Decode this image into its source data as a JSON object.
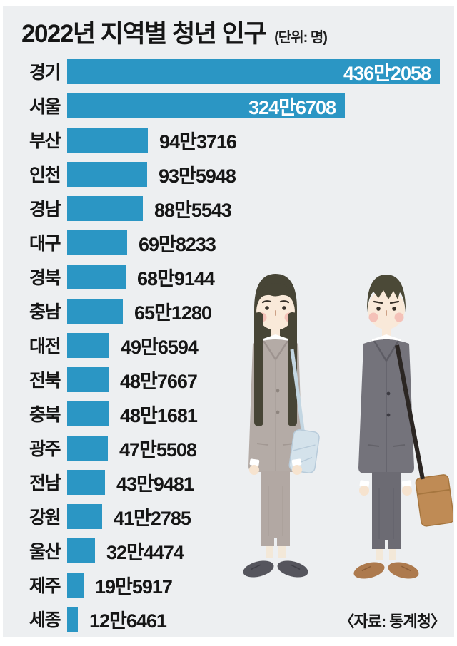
{
  "title": "2022년 지역별 청년 인구",
  "unit_note": "(단위: 명)",
  "source": "〈자료: 통계청〉",
  "colors": {
    "panel_bg": "#edeff1",
    "bar": "#2b96c4",
    "text": "#161616",
    "value_inside_text": "#ffffff"
  },
  "chart_data": {
    "type": "bar",
    "orientation": "horizontal",
    "title": "2022년 지역별 청년 인구",
    "unit": "명",
    "xlim": [
      0,
      4362058
    ],
    "grid": false,
    "legend": false,
    "categories": [
      "경기",
      "서울",
      "부산",
      "인천",
      "경남",
      "대구",
      "경북",
      "충남",
      "대전",
      "전북",
      "충북",
      "광주",
      "전남",
      "강원",
      "울산",
      "제주",
      "세종"
    ],
    "values": [
      4362058,
      3246708,
      943716,
      935948,
      885543,
      698233,
      689144,
      651280,
      496594,
      487667,
      481681,
      475508,
      439481,
      412785,
      324474,
      195917,
      126461
    ],
    "value_labels": [
      "436만2058",
      "324만6708",
      "94만3716",
      "93만5948",
      "88만5543",
      "69만8233",
      "68만9144",
      "65만1280",
      "49만6594",
      "48만7667",
      "48만1681",
      "47만5508",
      "43만9481",
      "41만2785",
      "32만4474",
      "19만5917",
      "12만6461"
    ],
    "source": "통계청"
  },
  "illustration": {
    "left_person": "young woman in beige suit with light-blue shoulder bag",
    "right_person": "young man in gray suit with brown messenger bag"
  }
}
